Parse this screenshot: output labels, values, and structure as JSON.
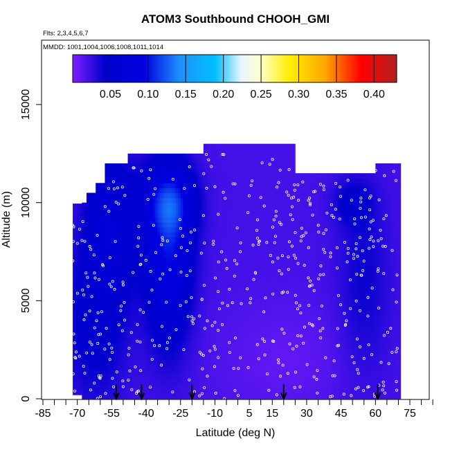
{
  "chart_data": {
    "type": "heatmap",
    "title": "ATOM3 Southbound CHOOH_GMI",
    "flights_note": "Flts: 2,3,4,5,6,7",
    "mmdd_note": "MMDD: 1001,1004,1006,1008,1011,1014",
    "xlabel": "Latitude (deg N)",
    "ylabel": "Altitude (m)",
    "xlim": [
      -85,
      85
    ],
    "ylim": [
      0,
      17500
    ],
    "x_tick_labels": [
      "-85",
      "-70",
      "-55",
      "-40",
      "-25",
      "-10",
      "5",
      "15",
      "30",
      "45",
      "60",
      "75"
    ],
    "x_tick_values": [
      -85,
      -70,
      -55,
      -40,
      -25,
      -10,
      5,
      15,
      30,
      45,
      60,
      75
    ],
    "y_tick_labels": [
      "0",
      "5000",
      "10000",
      "15000"
    ],
    "y_tick_values": [
      0,
      5000,
      10000,
      15000
    ],
    "colorbar": {
      "range": [
        0.0,
        0.43
      ],
      "tick_labels": [
        "0.05",
        "0.10",
        "0.15",
        "0.20",
        "0.25",
        "0.30",
        "0.35",
        "0.40"
      ],
      "tick_values": [
        0.05,
        0.1,
        0.15,
        0.2,
        0.25,
        0.3,
        0.35,
        0.4
      ],
      "colors": [
        "#7f1fff",
        "#0000cc",
        "#1e90ff",
        "#00bfff",
        "#ffffff",
        "#ffff00",
        "#ffa500",
        "#ff0000",
        "#b22222"
      ]
    },
    "southbound_arrows_lat": [
      -53,
      -42,
      -20,
      20,
      61
    ],
    "field_description_note": "Curtain of CHOOH values mostly 0.01-0.09, enhanced (~0.08-0.14) over 20-45S mid/upper troposphere"
  }
}
